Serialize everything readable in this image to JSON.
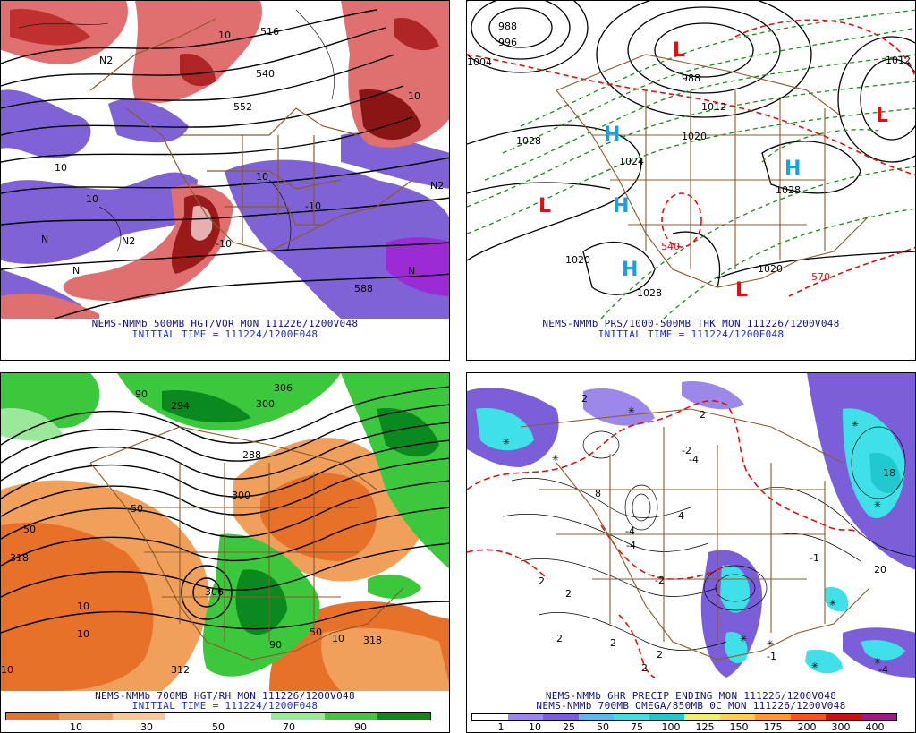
{
  "panels": {
    "vor500": {
      "caption_line1": "NEMS-NMMb 500MB HGT/VOR MON 111226/1200V048",
      "caption_line2": "INITIAL TIME = 111224/1200F048",
      "contour_labels": [
        "516",
        "540",
        "552",
        "10",
        "10",
        "10",
        "10",
        "-10",
        "-10",
        "N2",
        "N2",
        "N2",
        "N",
        "N",
        "N",
        "588",
        "10"
      ]
    },
    "prs": {
      "caption_line1": "NEMS-NMMb PRS/1000-500MB THK MON 111226/1200V048",
      "caption_line2": "INITIAL TIME = 111224/1200F048",
      "isobar_labels": [
        "988",
        "996",
        "1004",
        "1028",
        "988",
        "1012",
        "1020",
        "1012",
        "1024",
        "1028",
        "1020",
        "1028",
        "1020"
      ],
      "thickness_labels": [
        "540",
        "570"
      ],
      "pressure_centers": [
        {
          "symbol": "L",
          "color": "#e01010"
        },
        {
          "symbol": "L",
          "color": "#e01010"
        },
        {
          "symbol": "L",
          "color": "#e01010"
        },
        {
          "symbol": "L",
          "color": "#e01010"
        },
        {
          "symbol": "H",
          "color": "#1aa0e0"
        },
        {
          "symbol": "H",
          "color": "#1aa0e0"
        },
        {
          "symbol": "H",
          "color": "#1aa0e0"
        },
        {
          "symbol": "H",
          "color": "#1aa0e0"
        }
      ]
    },
    "rh700": {
      "caption_line1": "NEMS-NMMb 700MB HGT/RH MON 111226/1200V048",
      "caption_line2": "INITIAL TIME = 111224/1200F048",
      "contour_labels": [
        "306",
        "300",
        "294",
        "288",
        "318",
        "312",
        "306",
        "300",
        "318",
        "50",
        "50",
        "50",
        "10",
        "10",
        "10",
        "10",
        "90",
        "90"
      ],
      "colorbar": {
        "labels": [
          "10",
          "30",
          "50",
          "70",
          "90"
        ],
        "colors": [
          "#e8712a",
          "#f0a05a",
          "#f8c89a",
          "#ffffff",
          "#ffffff",
          "#9be89b",
          "#3cc83c",
          "#0a8a1e"
        ]
      }
    },
    "precip": {
      "caption_line1": "NEMS-NMMb 6HR PRECIP ENDING MON 111226/1200V048",
      "caption_line2": "NEMS-NMMb 700MB OMEGA/850MB 0C MON 111226/1200V048",
      "contour_labels": [
        "2",
        "2",
        "2",
        "2",
        "2",
        "2",
        "2",
        "2",
        "-2",
        "-4",
        "4",
        "-2",
        "8",
        "-4",
        "-4",
        "-1",
        "-1",
        "20",
        "-4",
        "18"
      ],
      "colorbar": {
        "labels": [
          "1",
          "10",
          "25",
          "50",
          "75",
          "100",
          "125",
          "150",
          "175",
          "200",
          "300",
          "400"
        ],
        "colors": [
          "#ffffff",
          "#9c88e8",
          "#7a5fd8",
          "#5fb8e8",
          "#40e0e8",
          "#20c8d0",
          "#f0f070",
          "#ffd050",
          "#ff9a30",
          "#ff5020",
          "#d01010",
          "#a01a8a"
        ]
      }
    }
  }
}
